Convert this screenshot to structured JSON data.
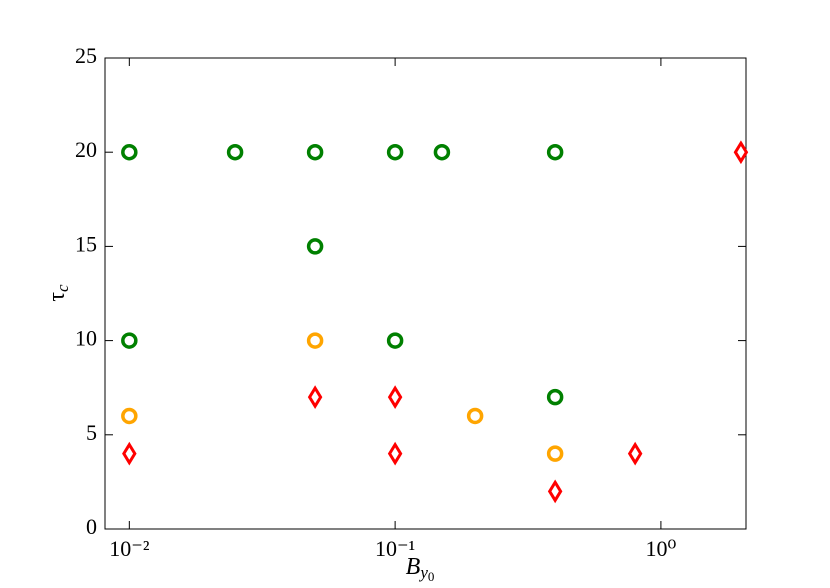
{
  "chart_data": {
    "type": "scatter",
    "x_label": {
      "base": "B",
      "sub": "y",
      "subsub": "0"
    },
    "y_label": {
      "base": "τ",
      "sub": "c"
    },
    "xscale": "log",
    "xlim": [
      0.0081,
      2.09
    ],
    "ylim": [
      0,
      25
    ],
    "xticks": [
      {
        "value": 0.01,
        "label": "10⁻²"
      },
      {
        "value": 0.1,
        "label": "10⁻¹"
      },
      {
        "value": 1,
        "label": "10⁰"
      }
    ],
    "yticks": [
      0,
      5,
      10,
      15,
      20,
      25
    ],
    "grid": false,
    "series": [
      {
        "color": "#008000",
        "marker": "circle",
        "x": [
          0.01,
          0.025,
          0.05,
          0.1,
          0.15,
          0.4,
          0.05,
          0.01,
          0.1,
          0.4
        ],
        "values": [
          20,
          20,
          20,
          20,
          20,
          20,
          15,
          10,
          10,
          7
        ]
      },
      {
        "color": "#ffa500",
        "marker": "circle",
        "x": [
          0.01,
          0.05,
          0.2,
          0.4
        ],
        "values": [
          6,
          10,
          6,
          4
        ]
      },
      {
        "color": "#ff0000",
        "marker": "diamond",
        "x": [
          0.01,
          0.05,
          0.1,
          0.1,
          0.4,
          0.8,
          2
        ],
        "values": [
          4,
          7,
          7,
          4,
          2,
          4,
          20
        ]
      }
    ]
  }
}
